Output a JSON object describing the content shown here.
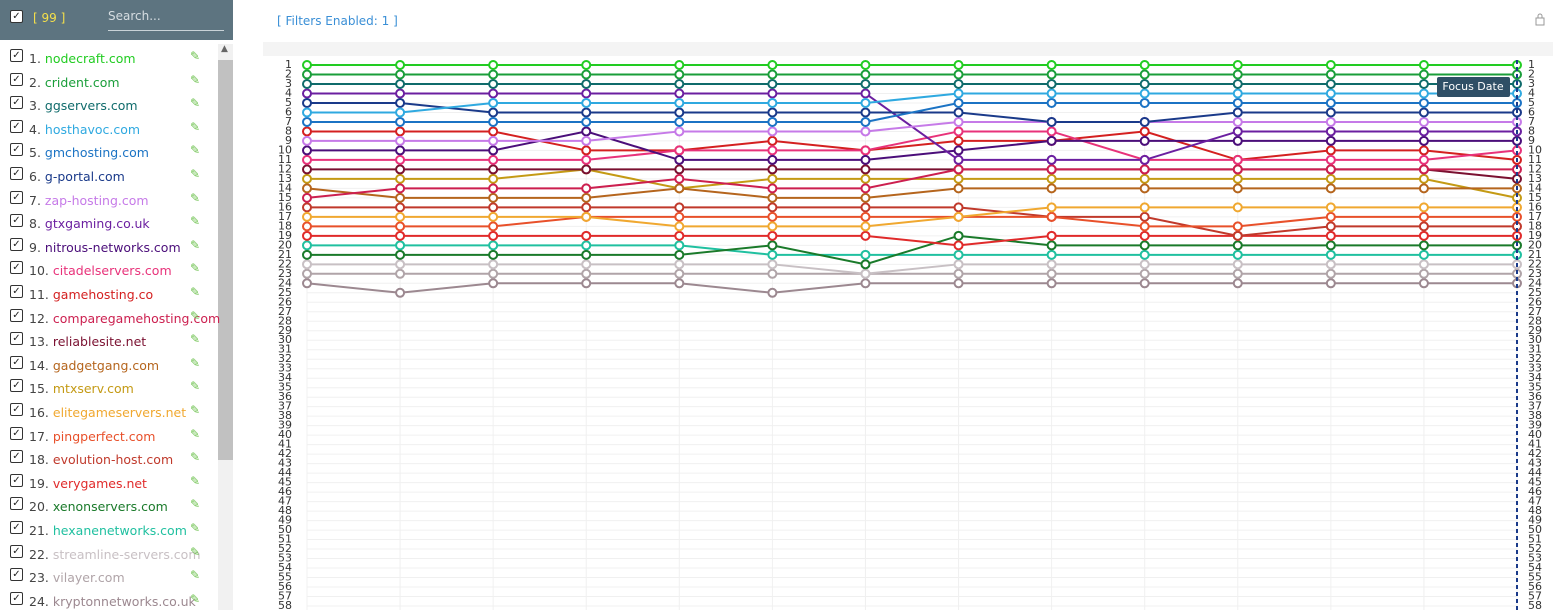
{
  "sidebar": {
    "count": "[ 99 ]",
    "search_placeholder": "Search..."
  },
  "filters": "[ Filters Enabled: 1 ]",
  "focus_button": "Focus Date",
  "chart_data": {
    "type": "line",
    "categories": [
      null,
      null,
      null,
      null,
      null,
      null,
      null,
      null,
      null,
      null,
      null,
      null,
      null,
      null
    ],
    "ylim": [
      58,
      1
    ],
    "yticks": [
      1,
      2,
      3,
      4,
      5,
      6,
      7,
      8,
      9,
      10,
      11,
      12,
      13,
      14,
      15,
      16,
      17,
      18,
      19,
      20,
      21,
      22,
      23,
      24,
      25,
      26,
      27,
      28,
      29,
      30,
      31,
      32,
      33,
      34,
      35,
      36,
      37,
      38,
      39,
      40,
      41,
      42,
      43,
      44,
      45,
      46,
      47,
      48,
      49,
      50,
      51,
      52,
      53,
      54,
      55,
      56,
      57,
      58
    ],
    "grid": true,
    "series": [
      {
        "number": "1.",
        "name": "nodecraft.com",
        "color": "#22cc22",
        "values": [
          1,
          1,
          1,
          1,
          1,
          1,
          1,
          1,
          1,
          1,
          1,
          1,
          1,
          1
        ]
      },
      {
        "number": "2.",
        "name": "crident.com",
        "color": "#1a9e3a",
        "values": [
          2,
          2,
          2,
          2,
          2,
          2,
          2,
          2,
          2,
          2,
          2,
          2,
          2,
          2
        ]
      },
      {
        "number": "3.",
        "name": "ggservers.com",
        "color": "#0f6b6b",
        "values": [
          3,
          3,
          3,
          3,
          3,
          3,
          3,
          3,
          3,
          3,
          3,
          3,
          3,
          3
        ]
      },
      {
        "number": "4.",
        "name": "hosthavoc.com",
        "color": "#2fa9e0",
        "values": [
          6,
          6,
          5,
          5,
          5,
          5,
          5,
          4,
          4,
          4,
          4,
          4,
          4,
          4
        ]
      },
      {
        "number": "5.",
        "name": "gmchosting.com",
        "color": "#1b73c4",
        "values": [
          7,
          7,
          7,
          7,
          7,
          7,
          7,
          5,
          5,
          5,
          5,
          5,
          5,
          5
        ]
      },
      {
        "number": "6.",
        "name": "g-portal.com",
        "color": "#1a3a8a",
        "values": [
          5,
          5,
          6,
          6,
          6,
          6,
          6,
          6,
          7,
          7,
          6,
          6,
          6,
          6
        ]
      },
      {
        "number": "7.",
        "name": "zap-hosting.com",
        "color": "#c67ae8",
        "values": [
          9,
          9,
          9,
          9,
          8,
          8,
          8,
          7,
          7,
          7,
          7,
          7,
          7,
          7
        ]
      },
      {
        "number": "8.",
        "name": "gtxgaming.co.uk",
        "color": "#6b1fa0",
        "values": [
          4,
          4,
          4,
          4,
          4,
          4,
          4,
          11,
          11,
          11,
          8,
          8,
          8,
          8
        ]
      },
      {
        "number": "9.",
        "name": "nitrous-networks.com",
        "color": "#4b0e7a",
        "values": [
          10,
          10,
          10,
          8,
          11,
          11,
          11,
          10,
          9,
          9,
          9,
          9,
          9,
          9
        ]
      },
      {
        "number": "10.",
        "name": "citadelservers.com",
        "color": "#e8327a",
        "values": [
          11,
          11,
          11,
          11,
          10,
          10,
          10,
          8,
          8,
          11,
          11,
          11,
          11,
          10
        ]
      },
      {
        "number": "11.",
        "name": "gamehosting.co",
        "color": "#d42020",
        "values": [
          8,
          8,
          8,
          10,
          10,
          9,
          10,
          9,
          9,
          8,
          11,
          10,
          10,
          11
        ]
      },
      {
        "number": "12.",
        "name": "comparegamehosting.com",
        "color": "#cc1f4f",
        "values": [
          15,
          14,
          14,
          14,
          13,
          14,
          14,
          12,
          12,
          12,
          12,
          12,
          12,
          12
        ]
      },
      {
        "number": "13.",
        "name": "reliablesite.net",
        "color": "#7a1030",
        "values": [
          12,
          12,
          12,
          12,
          12,
          12,
          12,
          12,
          12,
          12,
          12,
          12,
          12,
          13
        ]
      },
      {
        "number": "14.",
        "name": "gadgetgang.com",
        "color": "#b5651d",
        "values": [
          14,
          15,
          15,
          15,
          14,
          15,
          15,
          14,
          14,
          14,
          14,
          14,
          14,
          14
        ]
      },
      {
        "number": "15.",
        "name": "mtxserv.com",
        "color": "#c49a14",
        "values": [
          13,
          13,
          13,
          12,
          14,
          13,
          13,
          13,
          13,
          13,
          13,
          13,
          13,
          15
        ]
      },
      {
        "number": "16.",
        "name": "elitegameservers.net",
        "color": "#f0a830",
        "values": [
          17,
          17,
          17,
          17,
          18,
          18,
          18,
          17,
          16,
          16,
          16,
          16,
          16,
          16
        ]
      },
      {
        "number": "17.",
        "name": "pingperfect.com",
        "color": "#e8502a",
        "values": [
          18,
          18,
          18,
          17,
          17,
          17,
          17,
          17,
          17,
          18,
          18,
          17,
          17,
          17
        ]
      },
      {
        "number": "18.",
        "name": "evolution-host.com",
        "color": "#c0392b",
        "values": [
          16,
          16,
          16,
          16,
          16,
          16,
          16,
          16,
          17,
          17,
          19,
          18,
          18,
          18
        ]
      },
      {
        "number": "19.",
        "name": "verygames.net",
        "color": "#e02a2a",
        "values": [
          19,
          19,
          19,
          19,
          19,
          19,
          19,
          20,
          19,
          19,
          19,
          19,
          19,
          19
        ]
      },
      {
        "number": "20.",
        "name": "xenonservers.com",
        "color": "#1a7a2a",
        "values": [
          21,
          21,
          21,
          21,
          21,
          20,
          22,
          19,
          20,
          20,
          20,
          20,
          20,
          20
        ]
      },
      {
        "number": "21.",
        "name": "hexanenetworks.com",
        "color": "#20c0a0",
        "values": [
          20,
          20,
          20,
          20,
          20,
          21,
          21,
          21,
          21,
          21,
          21,
          21,
          21,
          21
        ]
      },
      {
        "number": "22.",
        "name": "streamline-servers.com",
        "color": "#c8c0c4",
        "values": [
          22,
          22,
          22,
          22,
          22,
          22,
          23,
          22,
          22,
          22,
          22,
          22,
          22,
          22
        ]
      },
      {
        "number": "23.",
        "name": "vilayer.com",
        "color": "#b0a4a8",
        "values": [
          23,
          23,
          23,
          23,
          23,
          23,
          23,
          23,
          23,
          23,
          23,
          23,
          23,
          23
        ]
      },
      {
        "number": "24.",
        "name": "kryptonnetworks.co.uk",
        "color": "#9c8890",
        "values": [
          24,
          25,
          24,
          24,
          24,
          25,
          24,
          24,
          24,
          24,
          24,
          24,
          24,
          24
        ]
      }
    ]
  }
}
